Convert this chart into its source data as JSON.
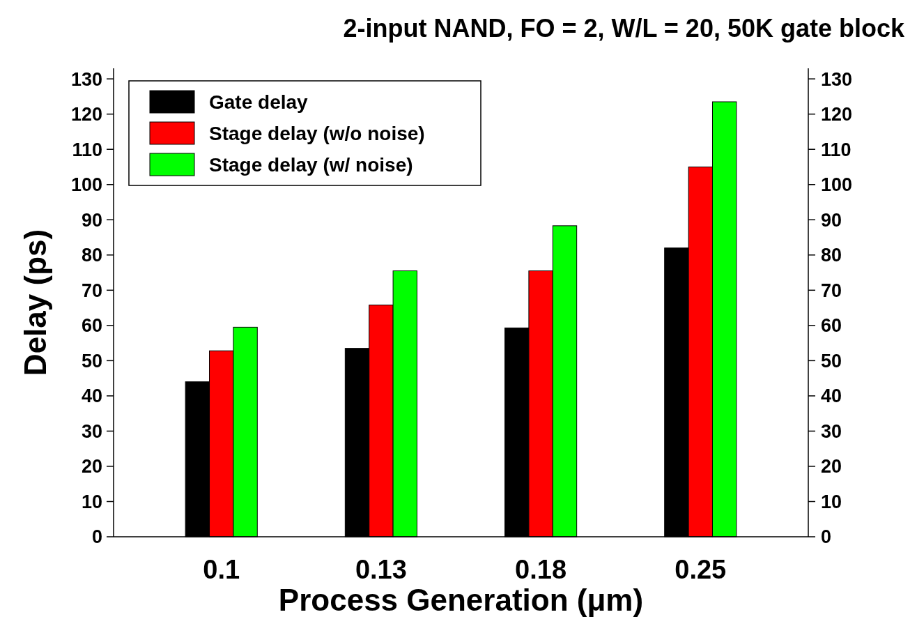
{
  "chart_data": {
    "type": "bar",
    "title": "2-input NAND, FO = 2, W/L = 20, 50K gate block",
    "xlabel": "Process Generation (μm)",
    "ylabel": "Delay (ps)",
    "categories": [
      "0.1",
      "0.13",
      "0.18",
      "0.25"
    ],
    "series": [
      {
        "name": "Gate delay",
        "color": "#000000",
        "values": [
          44,
          53.5,
          59.3,
          82
        ]
      },
      {
        "name": "Stage delay (w/o noise)",
        "color": "#ff0000",
        "values": [
          52.8,
          65.8,
          75.5,
          105
        ]
      },
      {
        "name": "Stage delay (w/ noise)",
        "color": "#00ff00",
        "values": [
          59.5,
          75.5,
          88.3,
          123.5
        ]
      }
    ],
    "ylim": [
      0,
      133
    ],
    "yticks": [
      0,
      10,
      20,
      30,
      40,
      50,
      60,
      70,
      80,
      90,
      100,
      110,
      120,
      130
    ],
    "y2lim": [
      0,
      133
    ],
    "y2ticks": [
      0,
      10,
      20,
      30,
      40,
      50,
      60,
      70,
      80,
      90,
      100,
      110,
      120,
      130
    ],
    "grid": false,
    "legend": "top left"
  }
}
